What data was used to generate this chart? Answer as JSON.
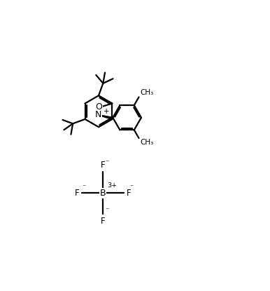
{
  "background_color": "#ffffff",
  "line_color": "#000000",
  "line_width": 1.6,
  "font_size": 8.5,
  "figsize": [
    3.86,
    4.15
  ],
  "dpi": 100,
  "xlim": [
    0,
    10
  ],
  "ylim": [
    0,
    10
  ],
  "bl": 0.75,
  "bl_ph": 0.68
}
